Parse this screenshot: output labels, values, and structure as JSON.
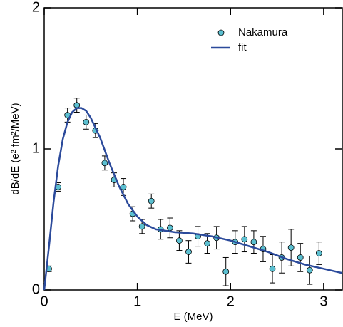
{
  "chart_data": {
    "type": "scatter",
    "xlabel": "E (MeV)",
    "ylabel": "dB/dE (e² fm²/MeV)",
    "xlim": [
      0,
      3.2
    ],
    "ylim": [
      0,
      2
    ],
    "xticks": [
      0,
      1,
      2,
      3
    ],
    "yticks": [
      0,
      1,
      2
    ],
    "legend": "upper right",
    "series": [
      {
        "name": "Nakamura",
        "type": "scatter",
        "color": "#5bbfd0",
        "x": [
          0.05,
          0.15,
          0.25,
          0.35,
          0.45,
          0.55,
          0.65,
          0.75,
          0.85,
          0.95,
          1.05,
          1.15,
          1.25,
          1.35,
          1.45,
          1.55,
          1.65,
          1.75,
          1.85,
          1.95,
          2.05,
          2.15,
          2.25,
          2.35,
          2.45,
          2.55,
          2.65,
          2.75,
          2.85,
          2.95
        ],
        "values": [
          0.15,
          0.73,
          1.24,
          1.31,
          1.19,
          1.13,
          0.9,
          0.78,
          0.73,
          0.54,
          0.45,
          0.63,
          0.43,
          0.44,
          0.35,
          0.27,
          0.38,
          0.33,
          0.37,
          0.13,
          0.34,
          0.36,
          0.34,
          0.29,
          0.15,
          0.23,
          0.3,
          0.23,
          0.14,
          0.26
        ],
        "errors": [
          0.02,
          0.03,
          0.05,
          0.05,
          0.05,
          0.05,
          0.05,
          0.05,
          0.06,
          0.05,
          0.05,
          0.05,
          0.07,
          0.07,
          0.07,
          0.08,
          0.07,
          0.07,
          0.08,
          0.1,
          0.08,
          0.09,
          0.08,
          0.09,
          0.1,
          0.11,
          0.13,
          0.1,
          0.1,
          0.08
        ]
      },
      {
        "name": "fit",
        "type": "line",
        "color": "#2b4a9b",
        "x": [
          0,
          0.05,
          0.1,
          0.15,
          0.2,
          0.25,
          0.3,
          0.35,
          0.4,
          0.45,
          0.5,
          0.6,
          0.7,
          0.8,
          0.9,
          1.0,
          1.1,
          1.2,
          1.4,
          1.6,
          1.8,
          2.0,
          2.2,
          2.4,
          2.6,
          2.8,
          3.0,
          3.2
        ],
        "values": [
          0,
          0.3,
          0.62,
          0.88,
          1.07,
          1.19,
          1.26,
          1.29,
          1.29,
          1.27,
          1.22,
          1.08,
          0.9,
          0.74,
          0.61,
          0.52,
          0.46,
          0.43,
          0.41,
          0.4,
          0.38,
          0.35,
          0.31,
          0.27,
          0.22,
          0.18,
          0.15,
          0.12
        ]
      }
    ]
  }
}
